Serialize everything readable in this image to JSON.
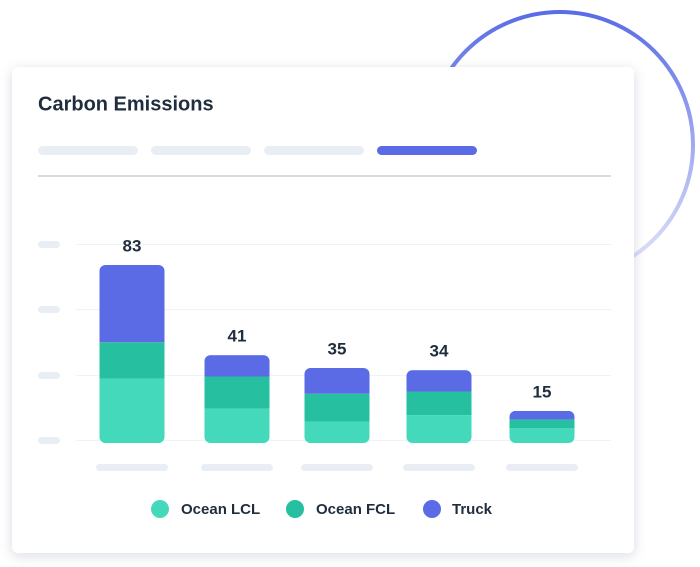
{
  "chart_data": {
    "type": "stacked-bar",
    "title": "Carbon Emissions",
    "categories": [
      null,
      null,
      null,
      null,
      null
    ],
    "series": [
      {
        "name": "Ocean LCL",
        "color": "#45d9bc",
        "values": [
          30,
          16,
          10,
          13,
          7
        ]
      },
      {
        "name": "Ocean FCL",
        "color": "#26c0a0",
        "values": [
          17,
          15,
          13,
          11,
          4
        ]
      },
      {
        "name": "Truck",
        "color": "#5b6be6",
        "values": [
          36,
          10,
          12,
          10,
          4
        ]
      }
    ],
    "totals": [
      83,
      41,
      35,
      34,
      15
    ],
    "ylim": [
      0,
      90
    ]
  }
}
